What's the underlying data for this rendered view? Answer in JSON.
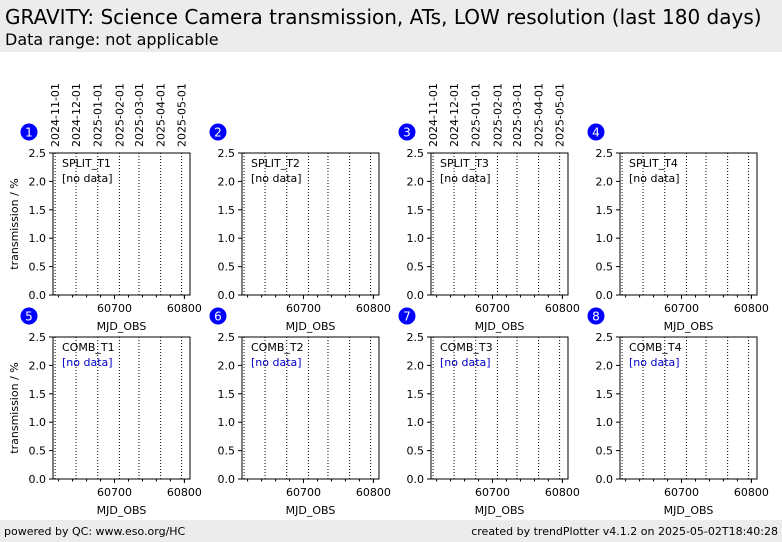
{
  "header": {
    "title": "GRAVITY: Science Camera transmission, ATs, LOW resolution (last 180 days)",
    "subtitle": "Data range: not applicable"
  },
  "footer": {
    "left": "powered by QC: www.eso.org/HC",
    "right": "created by trendPlotter v4.1.2 on 2025-05-02T18:40:28"
  },
  "colors": {
    "badge": "#0000ff",
    "header_bg": "#ececec",
    "no_data_blue": "#0000cc"
  },
  "chart_data": {
    "type": "scatter",
    "xlabel": "MJD_OBS",
    "ylabel": "transmission / %",
    "ylim": [
      0.0,
      2.5
    ],
    "xlim": [
      60612,
      60808
    ],
    "y_ticks": [
      "0.0",
      "0.5",
      "1.0",
      "1.5",
      "2.0",
      "2.5"
    ],
    "x_ticks": [
      60700,
      60800
    ],
    "x_tick_labels": [
      "60700",
      "60800"
    ],
    "date_lines_mjd": [
      60615,
      60645,
      60676,
      60707,
      60735,
      60766,
      60796
    ],
    "date_labels": [
      "2024-11-01",
      "2024-12-01",
      "2025-01-01",
      "2025-02-01",
      "2025-03-01",
      "2025-04-01",
      "2025-05-01"
    ],
    "panels": [
      {
        "number": "1",
        "label": "SPLIT_T1",
        "status": "[no data]",
        "status_color": "black",
        "values": []
      },
      {
        "number": "2",
        "label": "SPLIT_T2",
        "status": "[no data]",
        "status_color": "black",
        "values": []
      },
      {
        "number": "3",
        "label": "SPLIT_T3",
        "status": "[no data]",
        "status_color": "black",
        "values": []
      },
      {
        "number": "4",
        "label": "SPLIT_T4",
        "status": "[no data]",
        "status_color": "black",
        "values": []
      },
      {
        "number": "5",
        "label": "COMB_T1",
        "status": "[no data]",
        "status_color": "blue",
        "values": []
      },
      {
        "number": "6",
        "label": "COMB_T2",
        "status": "[no data]",
        "status_color": "blue",
        "values": []
      },
      {
        "number": "7",
        "label": "COMB_T3",
        "status": "[no data]",
        "status_color": "blue",
        "values": []
      },
      {
        "number": "8",
        "label": "COMB_T4",
        "status": "[no data]",
        "status_color": "blue",
        "values": []
      }
    ]
  }
}
